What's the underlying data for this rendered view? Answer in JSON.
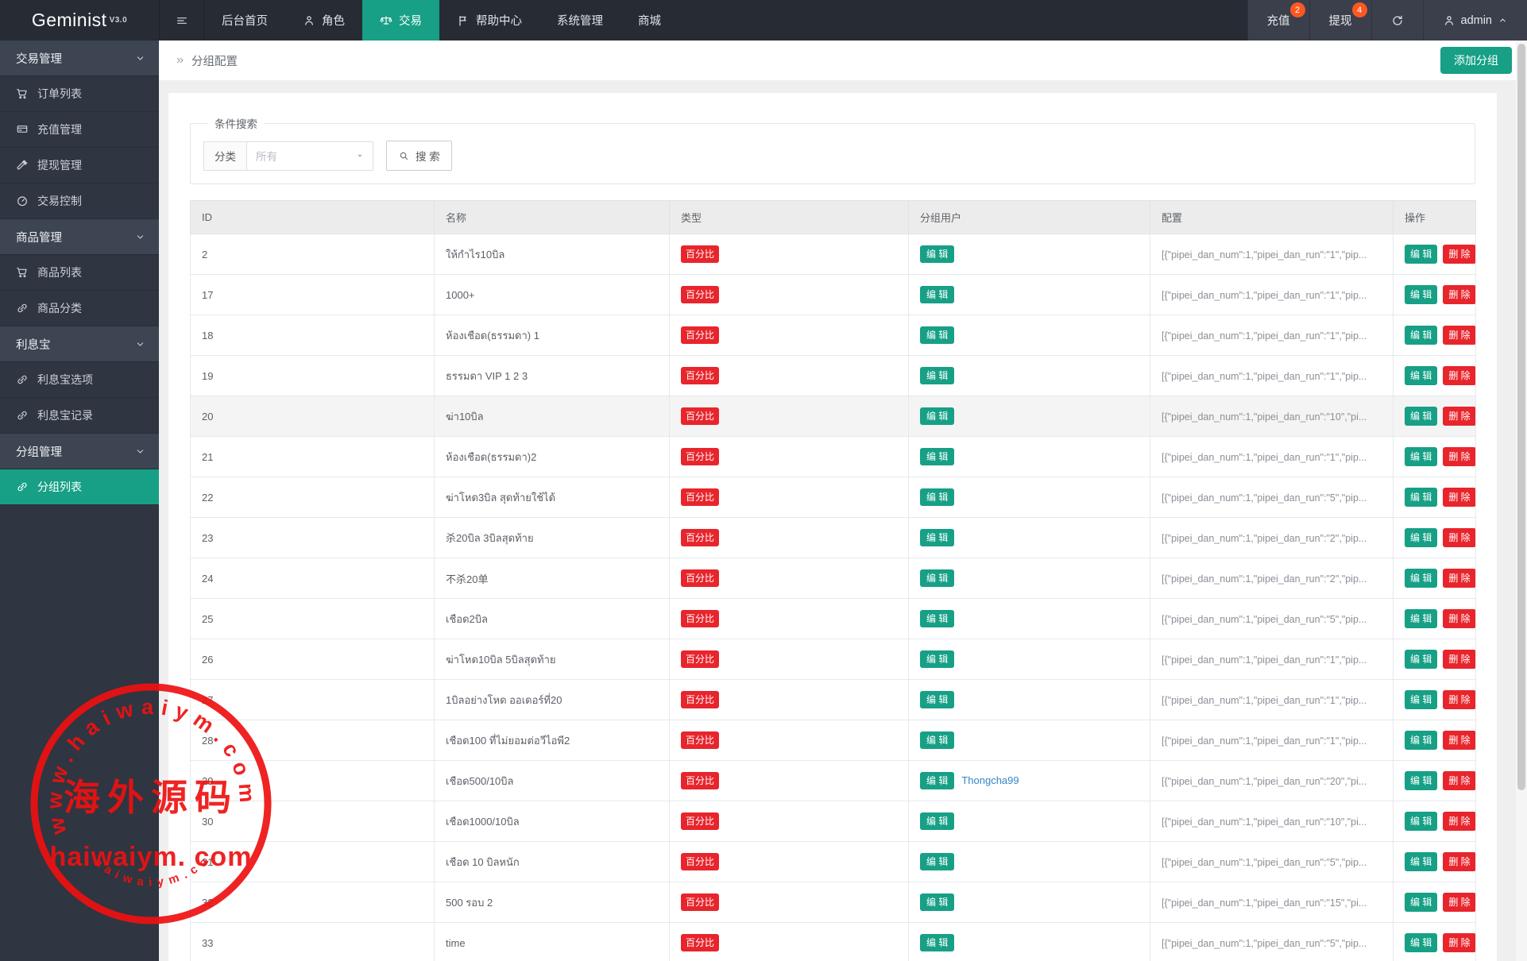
{
  "navbar": {
    "logo": "Geminist",
    "logo_version": "V3.0",
    "menu": [
      {
        "label": "后台首页",
        "icon": "",
        "active": false
      },
      {
        "label": "角色",
        "icon": "person-icon",
        "active": false
      },
      {
        "label": "交易",
        "icon": "scales-icon",
        "active": true
      },
      {
        "label": "帮助中心",
        "icon": "flag-icon",
        "active": false
      },
      {
        "label": "系统管理",
        "icon": "",
        "active": false
      },
      {
        "label": "商城",
        "icon": "",
        "active": false
      }
    ],
    "recharge_label": "充值",
    "recharge_badge": "2",
    "withdraw_label": "提现",
    "withdraw_badge": "4",
    "username": "admin"
  },
  "sidebar": {
    "sections": [
      {
        "label": "交易管理",
        "items": [
          {
            "label": "订单列表",
            "icon": "cart-icon",
            "active": false
          },
          {
            "label": "充值管理",
            "icon": "card-icon",
            "active": false
          },
          {
            "label": "提现管理",
            "icon": "gavel-icon",
            "active": false
          },
          {
            "label": "交易控制",
            "icon": "gauge-icon",
            "active": false
          }
        ]
      },
      {
        "label": "商品管理",
        "items": [
          {
            "label": "商品列表",
            "icon": "cart-icon",
            "active": false
          },
          {
            "label": "商品分类",
            "icon": "link-icon",
            "active": false
          }
        ]
      },
      {
        "label": "利息宝",
        "items": [
          {
            "label": "利息宝选项",
            "icon": "link-icon",
            "active": false
          },
          {
            "label": "利息宝记录",
            "icon": "link-icon",
            "active": false
          }
        ]
      },
      {
        "label": "分组管理",
        "items": [
          {
            "label": "分组列表",
            "icon": "link-icon",
            "active": true
          }
        ]
      }
    ]
  },
  "breadcrumb": {
    "title": "分组配置"
  },
  "toolbar": {
    "add_button": "添加分组"
  },
  "search": {
    "legend": "条件搜索",
    "category_label": "分类",
    "category_placeholder": "所有",
    "button": "搜 索"
  },
  "table": {
    "columns": [
      "ID",
      "名称",
      "类型",
      "分组用户",
      "配置",
      "操作"
    ],
    "type_badge": "百分比",
    "edit_badge": "编 辑",
    "delete_badge": "删 除",
    "rows": [
      {
        "id": "2",
        "name": "ให้กำไร10บิล",
        "config": "[{\"pipei_dan_num\":1,\"pipei_dan_run\":\"1\",\"pip...",
        "user_link": "",
        "highlight": false
      },
      {
        "id": "17",
        "name": "1000+",
        "config": "[{\"pipei_dan_num\":1,\"pipei_dan_run\":\"1\",\"pip...",
        "user_link": "",
        "highlight": false
      },
      {
        "id": "18",
        "name": "ห้องเชือด(ธรรมดา) 1",
        "config": "[{\"pipei_dan_num\":1,\"pipei_dan_run\":\"1\",\"pip...",
        "user_link": "",
        "highlight": false
      },
      {
        "id": "19",
        "name": "ธรรมดา VIP 1 2 3",
        "config": "[{\"pipei_dan_num\":1,\"pipei_dan_run\":\"1\",\"pip...",
        "user_link": "",
        "highlight": false
      },
      {
        "id": "20",
        "name": "ฆ่า10บิล",
        "config": "[{\"pipei_dan_num\":1,\"pipei_dan_run\":\"10\",\"pi...",
        "user_link": "",
        "highlight": true
      },
      {
        "id": "21",
        "name": "ห้องเชือด(ธรรมดา)2",
        "config": "[{\"pipei_dan_num\":1,\"pipei_dan_run\":\"1\",\"pip...",
        "user_link": "",
        "highlight": false
      },
      {
        "id": "22",
        "name": "ฆ่าโหด3บิล สุดท้ายใช้ได้",
        "config": "[{\"pipei_dan_num\":1,\"pipei_dan_run\":\"5\",\"pip...",
        "user_link": "",
        "highlight": false
      },
      {
        "id": "23",
        "name": "杀20บิล 3บิลสุดท้าย",
        "config": "[{\"pipei_dan_num\":1,\"pipei_dan_run\":\"2\",\"pip...",
        "user_link": "",
        "highlight": false
      },
      {
        "id": "24",
        "name": "不杀20单",
        "config": "[{\"pipei_dan_num\":1,\"pipei_dan_run\":\"2\",\"pip...",
        "user_link": "",
        "highlight": false
      },
      {
        "id": "25",
        "name": "เชือด2บิล",
        "config": "[{\"pipei_dan_num\":1,\"pipei_dan_run\":\"5\",\"pip...",
        "user_link": "",
        "highlight": false
      },
      {
        "id": "26",
        "name": "ฆ่าโหด10บิล 5บิลสุดท้าย",
        "config": "[{\"pipei_dan_num\":1,\"pipei_dan_run\":\"1\",\"pip...",
        "user_link": "",
        "highlight": false
      },
      {
        "id": "27",
        "name": "1บิลอย่างโหด ออเดอร์ที่20",
        "config": "[{\"pipei_dan_num\":1,\"pipei_dan_run\":\"1\",\"pip...",
        "user_link": "",
        "highlight": false
      },
      {
        "id": "28",
        "name": "เชือด100 ที่ไม่ยอมต่อวีไอพี2",
        "config": "[{\"pipei_dan_num\":1,\"pipei_dan_run\":\"1\",\"pip...",
        "user_link": "",
        "highlight": false
      },
      {
        "id": "29",
        "name": "เชือด500/10บิล",
        "config": "[{\"pipei_dan_num\":1,\"pipei_dan_run\":\"20\",\"pi...",
        "user_link": "Thongcha99",
        "highlight": false
      },
      {
        "id": "30",
        "name": "เชือด1000/10บิล",
        "config": "[{\"pipei_dan_num\":1,\"pipei_dan_run\":\"10\",\"pi...",
        "user_link": "",
        "highlight": false
      },
      {
        "id": "31",
        "name": "เชือด 10 บิลหนัก",
        "config": "[{\"pipei_dan_num\":1,\"pipei_dan_run\":\"5\",\"pip...",
        "user_link": "",
        "highlight": false
      },
      {
        "id": "32",
        "name": "500 รอบ 2",
        "config": "[{\"pipei_dan_num\":1,\"pipei_dan_run\":\"15\",\"pi...",
        "user_link": "",
        "highlight": false
      },
      {
        "id": "33",
        "name": "time",
        "config": "[{\"pipei_dan_num\":1,\"pipei_dan_run\":\"5\",\"pip...",
        "user_link": "",
        "highlight": false
      }
    ]
  },
  "watermark": {
    "arc_text": "www.haiwaiym.com",
    "center_text": "海外源码",
    "line_text": "haiwaiym. com",
    "bottom_arc_text": "haiwaiym.com",
    "color": "#ee1111"
  },
  "colors": {
    "accent_teal": "#17a086",
    "danger_red": "#e8252c",
    "badge_orange": "#ff5722",
    "link_blue": "#3486c7",
    "navbar_dark": "#262b34",
    "sidebar_dark": "#2f3541"
  }
}
